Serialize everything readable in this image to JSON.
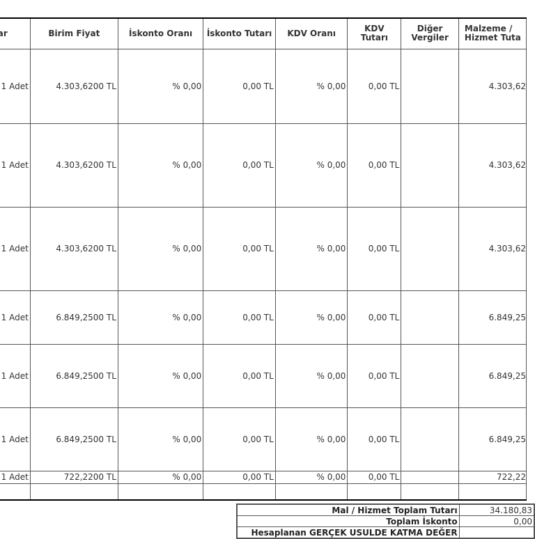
{
  "table": {
    "headers": {
      "quantity": "tar",
      "unit_price": "Birim Fiyat",
      "discount_rate": "İskonto Oranı",
      "discount_amount": "İskonto Tutarı",
      "vat_rate": "KDV Oranı",
      "vat_amount": "KDV Tutarı",
      "other_taxes": "Diğer Vergiler",
      "line_total": "Malzeme / Hizmet Tuta"
    },
    "rows": [
      {
        "quantity": "1 Adet",
        "unit_price": "4.303,6200 TL",
        "discount_rate": "% 0,00",
        "discount_amount": "0,00 TL",
        "vat_rate": "% 0,00",
        "vat_amount": "0,00 TL",
        "other_taxes": "",
        "line_total": "4.303,62"
      },
      {
        "quantity": "1 Adet",
        "unit_price": "4.303,6200 TL",
        "discount_rate": "% 0,00",
        "discount_amount": "0,00 TL",
        "vat_rate": "% 0,00",
        "vat_amount": "0,00 TL",
        "other_taxes": "",
        "line_total": "4.303,62"
      },
      {
        "quantity": "1 Adet",
        "unit_price": "4.303,6200 TL",
        "discount_rate": "% 0,00",
        "discount_amount": "0,00 TL",
        "vat_rate": "% 0,00",
        "vat_amount": "0,00 TL",
        "other_taxes": "",
        "line_total": "4.303,62"
      },
      {
        "quantity": "1 Adet",
        "unit_price": "6.849,2500 TL",
        "discount_rate": "% 0,00",
        "discount_amount": "0,00 TL",
        "vat_rate": "% 0,00",
        "vat_amount": "0,00 TL",
        "other_taxes": "",
        "line_total": "6.849,25"
      },
      {
        "quantity": "1 Adet",
        "unit_price": "6.849,2500 TL",
        "discount_rate": "% 0,00",
        "discount_amount": "0,00 TL",
        "vat_rate": "% 0,00",
        "vat_amount": "0,00 TL",
        "other_taxes": "",
        "line_total": "6.849,25"
      },
      {
        "quantity": "1 Adet",
        "unit_price": "6.849,2500 TL",
        "discount_rate": "% 0,00",
        "discount_amount": "0,00 TL",
        "vat_rate": "% 0,00",
        "vat_amount": "0,00 TL",
        "other_taxes": "",
        "line_total": "6.849,25"
      },
      {
        "quantity": "1 Adet",
        "unit_price": "722,2200 TL",
        "discount_rate": "% 0,00",
        "discount_amount": "0,00 TL",
        "vat_rate": "% 0,00",
        "vat_amount": "0,00 TL",
        "other_taxes": "",
        "line_total": "722,22"
      },
      {
        "quantity": "",
        "unit_price": "",
        "discount_rate": "",
        "discount_amount": "",
        "vat_rate": "",
        "vat_amount": "",
        "other_taxes": "",
        "line_total": ""
      }
    ]
  },
  "totals": [
    {
      "label": "Mal / Hizmet Toplam Tutarı",
      "value": "34.180,83"
    },
    {
      "label": "Toplam İskonto",
      "value": "0,00"
    },
    {
      "label": "Hesaplanan GERÇEK USULDE KATMA DEĞER",
      "value": ""
    }
  ]
}
